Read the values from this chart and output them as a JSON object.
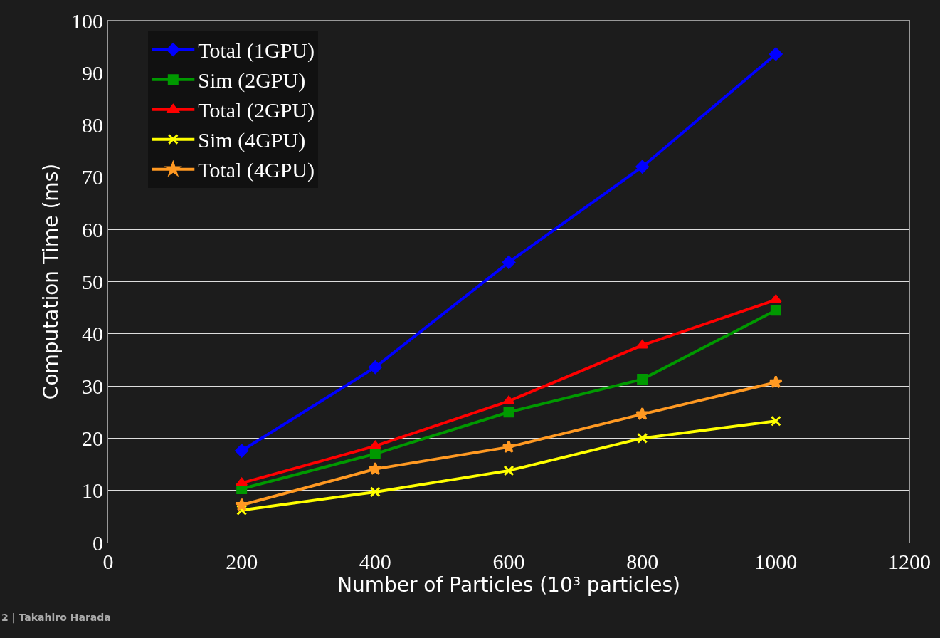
{
  "chart_data": {
    "type": "line",
    "xlabel": "Number of Particles (10³ particles)",
    "ylabel": "Computation Time (ms)",
    "x": [
      200,
      400,
      600,
      800,
      1000
    ],
    "series": [
      {
        "name": "Total (1GPU)",
        "color": "#0000ff",
        "marker": "diamond",
        "values": [
          17.6,
          33.6,
          53.7,
          72.0,
          93.6
        ]
      },
      {
        "name": "Sim (2GPU)",
        "color": "#009900",
        "marker": "square",
        "values": [
          10.3,
          17.0,
          25.0,
          31.3,
          44.5
        ]
      },
      {
        "name": "Total (2GPU)",
        "color": "#ff0000",
        "marker": "triangle",
        "values": [
          11.4,
          18.5,
          27.1,
          37.8,
          46.5
        ]
      },
      {
        "name": "Sim (4GPU)",
        "color": "#ffff00",
        "marker": "cross",
        "values": [
          6.2,
          9.7,
          13.8,
          20.0,
          23.3
        ]
      },
      {
        "name": "Total (4GPU)",
        "color": "#ff9922",
        "marker": "star",
        "values": [
          7.2,
          14.1,
          18.3,
          24.6,
          30.7
        ]
      }
    ],
    "xlim": [
      0,
      1200
    ],
    "xticks": [
      0,
      200,
      400,
      600,
      800,
      1000,
      1200
    ],
    "ylim": [
      0,
      100
    ],
    "yticks": [
      0,
      10,
      20,
      30,
      40,
      50,
      60,
      70,
      80,
      90,
      100
    ],
    "grid": "y",
    "legend": "top left",
    "line_style": "solid",
    "annotations": [
      "2 | Takahiro Harada"
    ]
  }
}
